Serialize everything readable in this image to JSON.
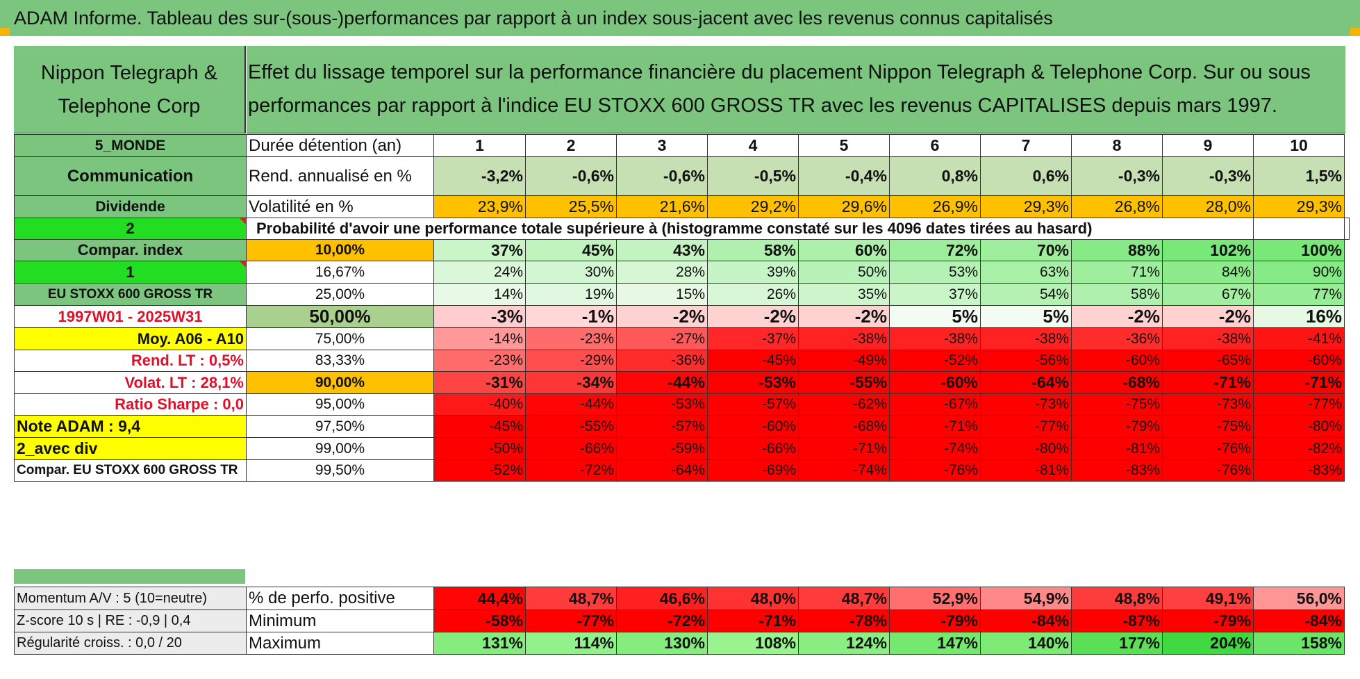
{
  "title": "ADAM Informe. Tableau des sur-(sous-)performances par rapport à un index sous-jacent avec les revenus connus capitalisés",
  "header": {
    "company_lines": [
      "Nippon Telegraph &",
      "Telephone Corp"
    ],
    "description_lines": [
      "Effet du lissage temporel sur la performance financière du placement Nippon Telegraph & Telephone Corp. Sur ou sous",
      "performances par rapport à l'indice EU STOXX 600 GROSS TR avec les revenus CAPITALISES depuis mars 1997."
    ]
  },
  "left_labels": {
    "zone": "5_MONDE",
    "sector": "Communication",
    "div_label": "Dividende",
    "val2": "2",
    "compar_index": "Compar. index",
    "val1": "1",
    "index_name": "EU STOXX 600 GROSS TR",
    "period": "1997W01 - 2025W31",
    "moy": "Moy. A06 - A10",
    "rend_lt": "Rend. LT :    0,5%",
    "volat_lt": "Volat. LT :    28,1%",
    "sharpe": "Ratio Sharpe :     0,0",
    "note": "Note ADAM : 9,4",
    "avec_div": "2_avec div",
    "compar_long": "Compar. EU STOXX 600 GROSS TR"
  },
  "rows_labels": {
    "duree": "Durée détention (an)",
    "rend": "Rend. annualisé en %",
    "vol": "Volatilité en %",
    "proba": "Probabilité d'avoir une performance totale supérieure à (histogramme constaté sur les 4096 dates tirées au hasard)"
  },
  "years": [
    "1",
    "2",
    "3",
    "4",
    "5",
    "6",
    "7",
    "8",
    "9",
    "10"
  ],
  "rendement": [
    "-3,2%",
    "-0,6%",
    "-0,6%",
    "-0,5%",
    "-0,4%",
    "0,8%",
    "0,6%",
    "-0,3%",
    "-0,3%",
    "1,5%"
  ],
  "volatilite": [
    "23,9%",
    "25,5%",
    "21,6%",
    "29,2%",
    "29,6%",
    "26,9%",
    "29,3%",
    "26,8%",
    "28,0%",
    "29,3%"
  ],
  "prob_rows": [
    {
      "threshold": "10,00%",
      "values": [
        "37%",
        "45%",
        "43%",
        "58%",
        "60%",
        "72%",
        "70%",
        "88%",
        "102%",
        "100%"
      ]
    },
    {
      "threshold": "16,67%",
      "values": [
        "24%",
        "30%",
        "28%",
        "39%",
        "50%",
        "53%",
        "63%",
        "71%",
        "84%",
        "90%"
      ]
    },
    {
      "threshold": "25,00%",
      "values": [
        "14%",
        "19%",
        "15%",
        "26%",
        "35%",
        "37%",
        "54%",
        "58%",
        "67%",
        "77%"
      ]
    },
    {
      "threshold": "50,00%",
      "values": [
        "-3%",
        "-1%",
        "-2%",
        "-2%",
        "-2%",
        "5%",
        "5%",
        "-2%",
        "-2%",
        "16%"
      ]
    },
    {
      "threshold": "75,00%",
      "values": [
        "-14%",
        "-23%",
        "-27%",
        "-37%",
        "-38%",
        "-38%",
        "-38%",
        "-36%",
        "-38%",
        "-41%"
      ]
    },
    {
      "threshold": "83,33%",
      "values": [
        "-23%",
        "-29%",
        "-36%",
        "-45%",
        "-49%",
        "-52%",
        "-56%",
        "-60%",
        "-65%",
        "-60%"
      ]
    },
    {
      "threshold": "90,00%",
      "values": [
        "-31%",
        "-34%",
        "-44%",
        "-53%",
        "-55%",
        "-60%",
        "-64%",
        "-68%",
        "-71%",
        "-71%"
      ]
    },
    {
      "threshold": "95,00%",
      "values": [
        "-40%",
        "-44%",
        "-53%",
        "-57%",
        "-62%",
        "-67%",
        "-73%",
        "-75%",
        "-73%",
        "-77%"
      ]
    },
    {
      "threshold": "97,50%",
      "values": [
        "-45%",
        "-55%",
        "-57%",
        "-60%",
        "-68%",
        "-71%",
        "-77%",
        "-79%",
        "-75%",
        "-80%"
      ]
    },
    {
      "threshold": "99,00%",
      "values": [
        "-50%",
        "-66%",
        "-59%",
        "-66%",
        "-71%",
        "-74%",
        "-80%",
        "-81%",
        "-76%",
        "-82%"
      ]
    },
    {
      "threshold": "99,50%",
      "values": [
        "-52%",
        "-72%",
        "-64%",
        "-69%",
        "-74%",
        "-76%",
        "-81%",
        "-83%",
        "-76%",
        "-83%"
      ]
    }
  ],
  "bottom": {
    "momentum": "Momentum A/V : 5 (10=neutre)",
    "zscore": "Z-score 10 s | RE : -0,9 | 0,4",
    "regularite": "Régularité croiss. : 0,0 / 20",
    "pct_label": "% de perfo. positive",
    "min_label": "Minimum",
    "max_label": "Maximum",
    "pct_positive": [
      "44,4%",
      "48,7%",
      "46,6%",
      "48,0%",
      "48,7%",
      "52,9%",
      "54,9%",
      "48,8%",
      "49,1%",
      "56,0%"
    ],
    "minimum": [
      "-58%",
      "-77%",
      "-72%",
      "-71%",
      "-78%",
      "-79%",
      "-84%",
      "-87%",
      "-79%",
      "-84%"
    ],
    "maximum": [
      "131%",
      "114%",
      "130%",
      "108%",
      "124%",
      "147%",
      "140%",
      "177%",
      "204%",
      "158%"
    ]
  },
  "colors": {
    "header_green": "#7cc57f",
    "bright_green": "#22dd22",
    "yellow": "#ffff00",
    "orange": "#ffc000",
    "label_red": "#e0102a",
    "light_green_rend": "#c6e0b4",
    "band_green_50": "#a9d08e"
  }
}
